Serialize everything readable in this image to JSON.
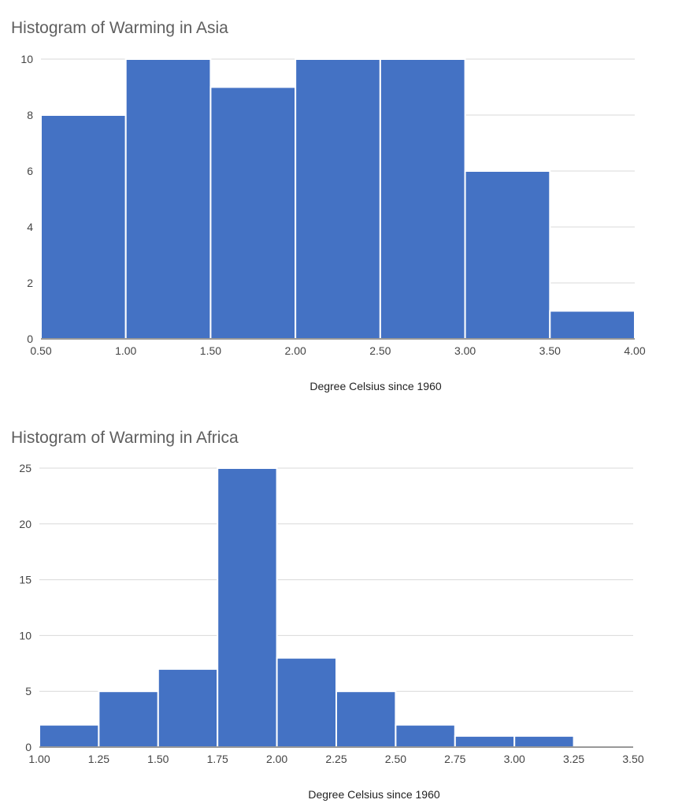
{
  "charts": [
    {
      "type": "bar",
      "title": "Histogram of Warming in Asia",
      "xlabel": "Degree Celsius since 1960",
      "ylabel": "",
      "bin_edges": [
        0.5,
        1.0,
        1.5,
        2.0,
        2.5,
        3.0,
        3.5,
        4.0
      ],
      "counts": [
        8,
        10,
        9,
        10,
        10,
        6,
        1
      ],
      "x_ticks": [
        "0.50",
        "1.00",
        "1.50",
        "2.00",
        "2.50",
        "3.00",
        "3.50",
        "4.00"
      ],
      "y_ticks": [
        0,
        2,
        4,
        6,
        8,
        10
      ],
      "xlim": [
        0.5,
        4.0
      ],
      "ylim": [
        0,
        10
      ],
      "grid": true,
      "bar_color": "#4472c4"
    },
    {
      "type": "bar",
      "title": "Histogram of Warming in Africa",
      "xlabel": "Degree Celsius since 1960",
      "ylabel": "",
      "bin_edges": [
        1.0,
        1.25,
        1.5,
        1.75,
        2.0,
        2.25,
        2.5,
        2.75,
        3.0,
        3.25,
        3.5
      ],
      "counts": [
        2,
        5,
        7,
        25,
        8,
        5,
        2,
        1,
        1,
        0
      ],
      "x_ticks": [
        "1.00",
        "1.25",
        "1.50",
        "1.75",
        "2.00",
        "2.25",
        "2.50",
        "2.75",
        "3.00",
        "3.25",
        "3.50"
      ],
      "y_ticks": [
        0,
        5,
        10,
        15,
        20,
        25
      ],
      "xlim": [
        1.0,
        3.5
      ],
      "ylim": [
        0,
        25
      ],
      "grid": true,
      "bar_color": "#4472c4"
    }
  ]
}
